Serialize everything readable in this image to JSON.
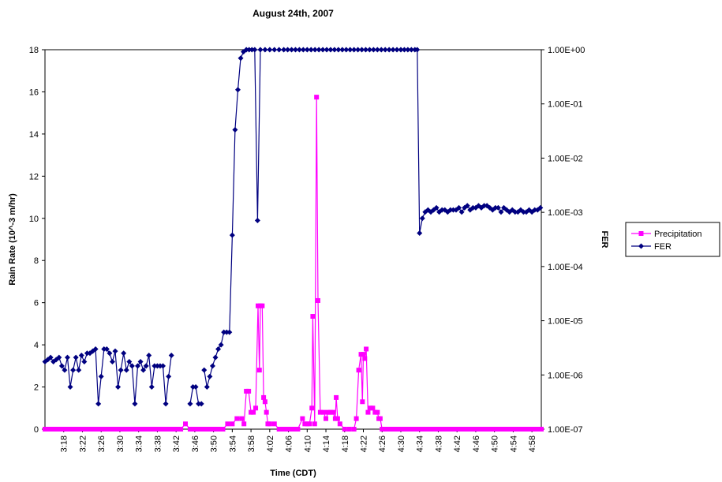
{
  "chart_data": {
    "type": "line",
    "title": "August 24th, 2007",
    "xlabel": "Time (CDT)",
    "ylabel_left": "Rain Rate (10^-3 m/hr)",
    "ylabel_right": "FER",
    "x_ticks": [
      "3:18",
      "3:22",
      "3:26",
      "3:30",
      "3:34",
      "3:38",
      "3:42",
      "3:46",
      "3:50",
      "3:54",
      "3:58",
      "4:02",
      "4:06",
      "4:10",
      "4:14",
      "4:18",
      "4:22",
      "4:26",
      "4:30",
      "4:34",
      "4:38",
      "4:42",
      "4:46",
      "4:50",
      "4:54",
      "4:58"
    ],
    "x_unit": "minutes",
    "xlim": [
      "3:14",
      "5:00"
    ],
    "ylim_left": [
      0,
      18
    ],
    "y_ticks_left": [
      "0",
      "2",
      "4",
      "6",
      "8",
      "10",
      "12",
      "14",
      "16",
      "18"
    ],
    "y_scale_right": "log",
    "ylim_right": [
      "1.00E-07",
      "1.00E+00"
    ],
    "y_ticks_right": [
      "1.00E-07",
      "1.00E-06",
      "1.00E-05",
      "1.00E-04",
      "1.00E-03",
      "1.00E-02",
      "1.00E-01",
      "1.00E+00"
    ],
    "grid": "horizontal line at top only",
    "legend_position": "right",
    "colors": {
      "precipitation": "#FF00FF",
      "fer": "#000080"
    },
    "series": [
      {
        "name": "Precipitation",
        "axis": "left",
        "marker": "square",
        "points": [
          [
            "3:14",
            0
          ],
          [
            "3:20",
            0
          ],
          [
            "3:30",
            0
          ],
          [
            "3:40",
            0
          ],
          [
            "3:43",
            0
          ],
          [
            "3:44",
            0.25
          ],
          [
            "3:45",
            0
          ],
          [
            "3:52",
            0
          ],
          [
            "3:53",
            0.25
          ],
          [
            "3:54",
            0.25
          ],
          [
            "3:55",
            0.5
          ],
          [
            "3:56",
            0.5
          ],
          [
            "3:56.5",
            0.25
          ],
          [
            "3:57",
            1.8
          ],
          [
            "3:57.5",
            1.8
          ],
          [
            "3:58",
            0.8
          ],
          [
            "3:58.5",
            0.8
          ],
          [
            "3:59",
            1.0
          ],
          [
            "3:59.5",
            5.85
          ],
          [
            "3:59.8",
            2.8
          ],
          [
            "4:00",
            5.85
          ],
          [
            "4:00.4",
            5.85
          ],
          [
            "4:00.7",
            1.5
          ],
          [
            "4:01",
            1.3
          ],
          [
            "4:01.3",
            0.8
          ],
          [
            "4:01.6",
            0.25
          ],
          [
            "4:02",
            0.25
          ],
          [
            "4:03",
            0.25
          ],
          [
            "4:04",
            0
          ],
          [
            "4:08",
            0
          ],
          [
            "4:09",
            0.5
          ],
          [
            "4:09.5",
            0.25
          ],
          [
            "4:10",
            0.25
          ],
          [
            "4:10.5",
            0.25
          ],
          [
            "4:11",
            1.0
          ],
          [
            "4:11.2",
            5.35
          ],
          [
            "4:11.6",
            0.25
          ],
          [
            "4:12",
            15.75
          ],
          [
            "4:12.3",
            6.1
          ],
          [
            "4:12.8",
            0.8
          ],
          [
            "4:13.5",
            0.8
          ],
          [
            "4:14",
            0.5
          ],
          [
            "4:14.5",
            0.8
          ],
          [
            "4:15",
            0.8
          ],
          [
            "4:15.5",
            0.8
          ],
          [
            "4:16",
            0.5
          ],
          [
            "4:16.2",
            1.5
          ],
          [
            "4:16.5",
            0.5
          ],
          [
            "4:17",
            0.25
          ],
          [
            "4:18",
            0
          ],
          [
            "4:20",
            0
          ],
          [
            "4:20.5",
            0.5
          ],
          [
            "4:21",
            2.8
          ],
          [
            "4:21.5",
            3.55
          ],
          [
            "4:21.8",
            1.3
          ],
          [
            "4:22",
            3.55
          ],
          [
            "4:22.3",
            3.35
          ],
          [
            "4:22.6",
            3.8
          ],
          [
            "4:23",
            0.8
          ],
          [
            "4:23.5",
            1.0
          ],
          [
            "4:24",
            1.0
          ],
          [
            "4:24.5",
            0.8
          ],
          [
            "4:25",
            0.8
          ],
          [
            "4:25.3",
            0.5
          ],
          [
            "4:25.6",
            0.5
          ],
          [
            "4:26",
            0
          ],
          [
            "4:30",
            0
          ],
          [
            "4:40",
            0
          ],
          [
            "4:50",
            0
          ],
          [
            "5:00",
            0
          ]
        ]
      },
      {
        "name": "FER",
        "axis": "right",
        "marker": "diamond",
        "points": [
          [
            "3:14",
            3.2
          ],
          [
            "3:14.6",
            3.3
          ],
          [
            "3:15.2",
            3.4
          ],
          [
            "3:15.8",
            3.2
          ],
          [
            "3:16.4",
            3.3
          ],
          [
            "3:17",
            3.4
          ],
          [
            "3:17.6",
            3.0
          ],
          [
            "3:18.2",
            2.8
          ],
          [
            "3:18.8",
            3.4
          ],
          [
            "3:19.4",
            2.0
          ],
          [
            "3:20",
            2.8
          ],
          [
            "3:20.6",
            3.4
          ],
          [
            "3:21.2",
            2.8
          ],
          [
            "3:21.8",
            3.5
          ],
          [
            "3:22.4",
            3.2
          ],
          [
            "3:23",
            3.6
          ],
          [
            "3:23.6",
            3.6
          ],
          [
            "3:24.2",
            3.7
          ],
          [
            "3:24.8",
            3.8
          ],
          [
            "3:25.4",
            1.2
          ],
          [
            "3:26",
            2.5
          ],
          [
            "3:26.6",
            3.8
          ],
          [
            "3:27.2",
            3.8
          ],
          [
            "3:27.8",
            3.6
          ],
          [
            "3:28.4",
            3.2
          ],
          [
            "3:29",
            3.7
          ],
          [
            "3:29.6",
            2.0
          ],
          [
            "3:30.2",
            2.8
          ],
          [
            "3:30.8",
            3.6
          ],
          [
            "3:31.4",
            2.8
          ],
          [
            "3:32",
            3.2
          ],
          [
            "3:32.6",
            3.0
          ],
          [
            "3:33.2",
            1.2
          ],
          [
            "3:33.8",
            3.0
          ],
          [
            "3:34.4",
            3.2
          ],
          [
            "3:35",
            2.8
          ],
          [
            "3:35.6",
            3.0
          ],
          [
            "3:36.2",
            3.5
          ],
          [
            "3:36.8",
            2.0
          ],
          [
            "3:37.4",
            3.0
          ],
          [
            "3:38",
            3.0
          ],
          [
            "3:38.6",
            3.0
          ],
          [
            "3:39.2",
            3.0
          ],
          [
            "3:39.8",
            1.2
          ],
          [
            "3:40.4",
            2.5
          ],
          [
            "3:41",
            3.5
          ],
          [
            null,
            null
          ],
          [
            "3:45",
            1.2
          ],
          [
            "3:45.6",
            2.0
          ],
          [
            "3:46.2",
            2.0
          ],
          [
            "3:46.8",
            1.2
          ],
          [
            "3:47.4",
            1.2
          ],
          [
            null,
            null
          ],
          [
            "3:48",
            2.8
          ],
          [
            "3:48.6",
            2.0
          ],
          [
            "3:49.2",
            2.5
          ],
          [
            "3:49.8",
            3.0
          ],
          [
            "3:50.4",
            3.4
          ],
          [
            "3:51",
            3.8
          ],
          [
            "3:51.6",
            4.0
          ],
          [
            "3:52.2",
            4.6
          ],
          [
            "3:52.8",
            4.6
          ],
          [
            "3:53.4",
            4.6
          ],
          [
            "3:54",
            9.2
          ],
          [
            "3:54.6",
            14.2
          ],
          [
            "3:55.2",
            16.1
          ],
          [
            "3:55.8",
            17.6
          ],
          [
            "3:56.4",
            17.9
          ],
          [
            "3:57",
            18
          ],
          [
            "3:57.6",
            18
          ],
          [
            "3:58.2",
            18
          ],
          [
            "3:58.8",
            18
          ],
          [
            "3:59.4",
            9.9
          ],
          [
            "4:00",
            18
          ],
          [
            "4:01",
            18
          ],
          [
            "4:03",
            18
          ],
          [
            "4:05",
            18
          ],
          [
            "4:10",
            18
          ],
          [
            "4:15",
            18
          ],
          [
            "4:20",
            18
          ],
          [
            "4:25",
            18
          ],
          [
            "4:30",
            18
          ],
          [
            "4:33",
            18
          ],
          [
            "4:33.5",
            18
          ],
          [
            "4:34",
            9.3
          ],
          [
            "4:34.6",
            10.0
          ],
          [
            "4:35.2",
            10.3
          ],
          [
            "4:35.8",
            10.4
          ],
          [
            "4:36.4",
            10.3
          ],
          [
            "4:37",
            10.4
          ],
          [
            "4:37.6",
            10.5
          ],
          [
            "4:38.2",
            10.3
          ],
          [
            "4:38.8",
            10.4
          ],
          [
            "4:39.4",
            10.4
          ],
          [
            "4:40",
            10.3
          ],
          [
            "4:40.6",
            10.4
          ],
          [
            "4:41.2",
            10.4
          ],
          [
            "4:41.8",
            10.4
          ],
          [
            "4:42.4",
            10.5
          ],
          [
            "4:43",
            10.3
          ],
          [
            "4:43.6",
            10.5
          ],
          [
            "4:44.2",
            10.6
          ],
          [
            "4:44.8",
            10.4
          ],
          [
            "4:45.4",
            10.5
          ],
          [
            "4:46",
            10.5
          ],
          [
            "4:46.6",
            10.6
          ],
          [
            "4:47.2",
            10.5
          ],
          [
            "4:47.8",
            10.6
          ],
          [
            "4:48.4",
            10.6
          ],
          [
            "4:49",
            10.5
          ],
          [
            "4:49.6",
            10.4
          ],
          [
            "4:50.2",
            10.5
          ],
          [
            "4:50.8",
            10.5
          ],
          [
            "4:51.4",
            10.3
          ],
          [
            "4:52",
            10.5
          ],
          [
            "4:52.6",
            10.4
          ],
          [
            "4:53.2",
            10.3
          ],
          [
            "4:53.8",
            10.4
          ],
          [
            "4:54.4",
            10.3
          ],
          [
            "4:55",
            10.3
          ],
          [
            "4:55.6",
            10.4
          ],
          [
            "4:56.2",
            10.3
          ],
          [
            "4:56.8",
            10.3
          ],
          [
            "4:57.4",
            10.4
          ],
          [
            "4:58",
            10.3
          ],
          [
            "4:58.6",
            10.4
          ],
          [
            "4:59.2",
            10.4
          ],
          [
            "4:59.8",
            10.5
          ]
        ]
      }
    ]
  }
}
